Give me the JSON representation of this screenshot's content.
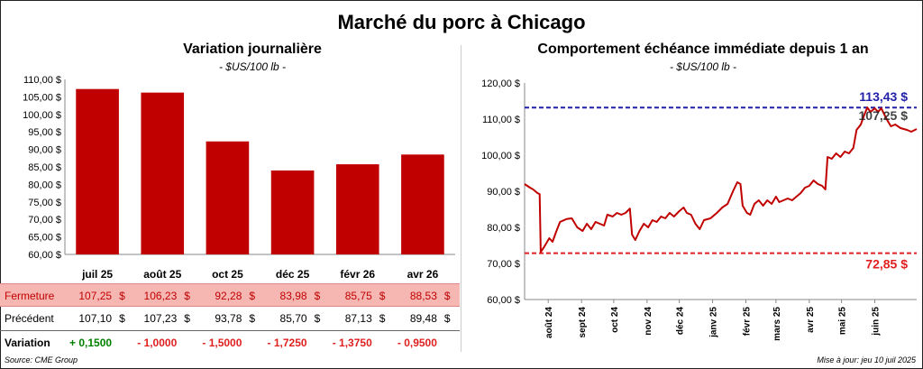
{
  "title": "Marché du porc à Chicago",
  "source": "Source: CME Group",
  "updated": "Mise à jour: jeu 10 juil 2025",
  "colors": {
    "bar": "#c00000",
    "line": "#c00000",
    "high": "#1f1fa8",
    "low": "#e02020",
    "green": "#008000"
  },
  "chart_data": [
    {
      "type": "bar",
      "title": "Variation journalière",
      "subtitle": "- $US/100 lb -",
      "categories": [
        "juil 25",
        "août 25",
        "oct 25",
        "déc 25",
        "févr 26",
        "avr 26"
      ],
      "values": [
        107.25,
        106.23,
        92.28,
        83.98,
        85.75,
        88.53
      ],
      "ylim": [
        60,
        110
      ],
      "yticks": [
        "60,00 $",
        "65,00 $",
        "70,00 $",
        "75,00 $",
        "80,00 $",
        "85,00 $",
        "90,00 $",
        "95,00 $",
        "100,00 $",
        "105,00 $",
        "110,00 $"
      ],
      "grid": false
    },
    {
      "type": "line",
      "title": "Comportement échéance immédiate depuis 1 an",
      "subtitle": "- $US/100 lb -",
      "ylim": [
        60,
        120
      ],
      "yticks": [
        "60,00 $",
        "70,00 $",
        "80,00 $",
        "90,00 $",
        "100,00 $",
        "110,00 $",
        "120,00 $"
      ],
      "xticks": [
        "août 24",
        "sept 24",
        "oct 24",
        "nov 24",
        "déc 24",
        "janv 25",
        "févr 25",
        "mars 25",
        "avr 25",
        "mai 25",
        "juin 25"
      ],
      "x_range": [
        "2024-07-10",
        "2025-07-10"
      ],
      "high": 113.2,
      "high_label": "113,43 $",
      "last": 107.25,
      "last_label": "107,25 $",
      "low": 72.85,
      "low_label": "72,85 $",
      "series": [
        {
          "values": [
            [
              "2024-07-10",
              92.0
            ],
            [
              "2024-07-15",
              91.0
            ],
            [
              "2024-07-18",
              90.5
            ],
            [
              "2024-07-20",
              90.0
            ],
            [
              "2024-07-22",
              89.5
            ],
            [
              "2024-07-24",
              89.2
            ],
            [
              "2024-07-25",
              73.2
            ],
            [
              "2024-07-28",
              74.5
            ],
            [
              "2024-08-02",
              77.0
            ],
            [
              "2024-08-05",
              76.0
            ],
            [
              "2024-08-08",
              78.5
            ],
            [
              "2024-08-12",
              81.5
            ],
            [
              "2024-08-18",
              82.3
            ],
            [
              "2024-08-23",
              82.5
            ],
            [
              "2024-08-28",
              80.0
            ],
            [
              "2024-09-02",
              79.0
            ],
            [
              "2024-09-06",
              81.0
            ],
            [
              "2024-09-10",
              79.5
            ],
            [
              "2024-09-14",
              81.5
            ],
            [
              "2024-09-18",
              81.0
            ],
            [
              "2024-09-22",
              80.5
            ],
            [
              "2024-09-25",
              83.5
            ],
            [
              "2024-09-30",
              83.0
            ],
            [
              "2024-10-04",
              84.0
            ],
            [
              "2024-10-08",
              83.5
            ],
            [
              "2024-10-12",
              84.0
            ],
            [
              "2024-10-16",
              85.2
            ],
            [
              "2024-10-18",
              78.0
            ],
            [
              "2024-10-21",
              76.5
            ],
            [
              "2024-10-25",
              79.0
            ],
            [
              "2024-10-29",
              81.0
            ],
            [
              "2024-11-02",
              80.0
            ],
            [
              "2024-11-06",
              82.0
            ],
            [
              "2024-11-10",
              81.5
            ],
            [
              "2024-11-14",
              83.0
            ],
            [
              "2024-11-18",
              82.5
            ],
            [
              "2024-11-22",
              84.0
            ],
            [
              "2024-11-26",
              83.0
            ],
            [
              "2024-12-01",
              84.5
            ],
            [
              "2024-12-05",
              85.5
            ],
            [
              "2024-12-08",
              84.0
            ],
            [
              "2024-12-12",
              83.5
            ],
            [
              "2024-12-16",
              81.0
            ],
            [
              "2024-12-20",
              79.5
            ],
            [
              "2024-12-24",
              82.0
            ],
            [
              "2024-12-30",
              82.5
            ],
            [
              "2025-01-05",
              84.0
            ],
            [
              "2025-01-10",
              85.5
            ],
            [
              "2025-01-15",
              86.5
            ],
            [
              "2025-01-20",
              90.0
            ],
            [
              "2025-01-24",
              92.5
            ],
            [
              "2025-01-27",
              92.0
            ],
            [
              "2025-01-29",
              86.0
            ],
            [
              "2025-02-02",
              84.0
            ],
            [
              "2025-02-05",
              83.5
            ],
            [
              "2025-02-09",
              86.5
            ],
            [
              "2025-02-13",
              87.5
            ],
            [
              "2025-02-17",
              86.0
            ],
            [
              "2025-02-21",
              87.5
            ],
            [
              "2025-02-25",
              86.5
            ],
            [
              "2025-03-01",
              88.5
            ],
            [
              "2025-03-04",
              87.0
            ],
            [
              "2025-03-08",
              87.5
            ],
            [
              "2025-03-12",
              88.0
            ],
            [
              "2025-03-16",
              87.5
            ],
            [
              "2025-03-20",
              88.5
            ],
            [
              "2025-03-24",
              89.5
            ],
            [
              "2025-03-28",
              91.0
            ],
            [
              "2025-04-01",
              91.5
            ],
            [
              "2025-04-05",
              93.0
            ],
            [
              "2025-04-09",
              92.0
            ],
            [
              "2025-04-13",
              91.5
            ],
            [
              "2025-04-16",
              90.5
            ],
            [
              "2025-04-18",
              99.5
            ],
            [
              "2025-04-22",
              99.0
            ],
            [
              "2025-04-26",
              100.5
            ],
            [
              "2025-04-30",
              99.5
            ],
            [
              "2025-05-04",
              101.0
            ],
            [
              "2025-05-08",
              100.5
            ],
            [
              "2025-05-12",
              102.0
            ],
            [
              "2025-05-15",
              107.0
            ],
            [
              "2025-05-19",
              108.5
            ],
            [
              "2025-05-22",
              111.0
            ],
            [
              "2025-05-25",
              113.2
            ],
            [
              "2025-05-28",
              112.0
            ],
            [
              "2025-06-01",
              113.0
            ],
            [
              "2025-06-04",
              112.0
            ],
            [
              "2025-06-07",
              113.0
            ],
            [
              "2025-06-12",
              110.0
            ],
            [
              "2025-06-16",
              108.0
            ],
            [
              "2025-06-20",
              108.5
            ],
            [
              "2025-06-25",
              107.5
            ],
            [
              "2025-07-01",
              107.0
            ],
            [
              "2025-07-05",
              106.5
            ],
            [
              "2025-07-10",
              107.25
            ]
          ]
        }
      ]
    }
  ],
  "table": {
    "rows": [
      {
        "label": "Fermeture",
        "cells": [
          "107,25",
          "106,23",
          "92,28",
          "83,98",
          "85,75",
          "88,53"
        ],
        "currency": "$"
      },
      {
        "label": "Précédent",
        "cells": [
          "107,10",
          "107,23",
          "93,78",
          "85,70",
          "87,13",
          "89,48"
        ],
        "currency": "$"
      },
      {
        "label": "Variation",
        "cells": [
          "+ 0,1500",
          "- 1,0000",
          "- 1,5000",
          "- 1,7250",
          "- 1,3750",
          "- 0,9500"
        ],
        "currency": ""
      }
    ]
  }
}
